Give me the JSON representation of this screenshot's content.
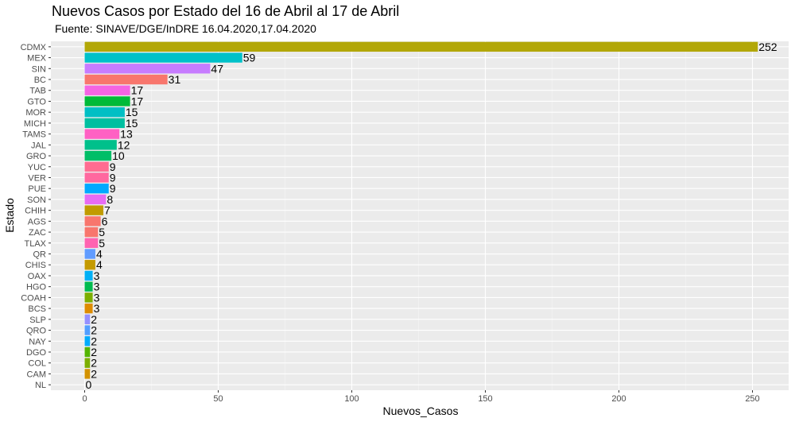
{
  "chart_data": {
    "type": "bar",
    "orientation": "horizontal",
    "title": "Nuevos Casos por Estado del 16 de Abril al 17 de Abril",
    "subtitle": "Fuente: SINAVE/DGE/InDRE 16.04.2020,17.04.2020",
    "xlabel": "Nuevos_Casos",
    "ylabel": "Estado",
    "xlim": [
      0,
      260
    ],
    "x_ticks": [
      "0",
      "50",
      "100",
      "150",
      "200",
      "250"
    ],
    "grid": true,
    "categories": [
      "CDMX",
      "MEX",
      "SIN",
      "BC",
      "TAB",
      "GTO",
      "MOR",
      "MICH",
      "TAMS",
      "JAL",
      "GRO",
      "YUC",
      "VER",
      "PUE",
      "SON",
      "CHIH",
      "AGS",
      "ZAC",
      "TLAX",
      "QR",
      "CHIS",
      "OAX",
      "HGO",
      "COAH",
      "BCS",
      "SLP",
      "QRO",
      "NAY",
      "DGO",
      "COL",
      "CAM",
      "NL"
    ],
    "values": [
      252,
      59,
      47,
      31,
      17,
      17,
      15,
      15,
      13,
      12,
      10,
      9,
      9,
      9,
      8,
      7,
      6,
      5,
      5,
      4,
      4,
      3,
      3,
      3,
      3,
      2,
      2,
      2,
      2,
      2,
      2,
      0
    ],
    "colors": [
      "#B2A707",
      "#00C1C9",
      "#C77CFF",
      "#F8766D",
      "#F564E3",
      "#00BA38",
      "#00BFC4",
      "#00BFA0",
      "#FF61C3",
      "#00C08B",
      "#00BE67",
      "#FF6C91",
      "#FF689F",
      "#00A9FF",
      "#E76BF3",
      "#C09B00",
      "#F8766D",
      "#F8766D",
      "#FF64B0",
      "#619CFF",
      "#C49A00",
      "#00B0F6",
      "#00BB4E",
      "#7CAE00",
      "#DE8C00",
      "#9590FF",
      "#529EFF",
      "#00ABFD",
      "#53B400",
      "#7CAE00",
      "#D39200",
      "#00B0F6"
    ]
  }
}
